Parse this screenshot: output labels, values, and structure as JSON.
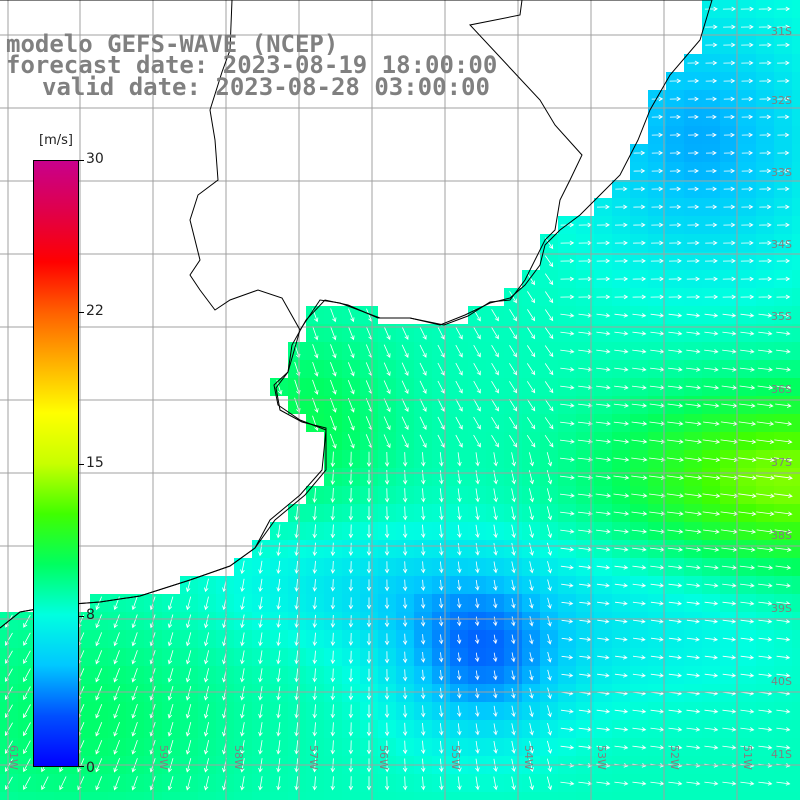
{
  "title": {
    "line1": "modelo GEFS-WAVE (NCEP)",
    "line2": "forecast date: 2023-08-19 18:00:00",
    "line3": "valid date: 2023-08-28 03:00:00"
  },
  "colorbar": {
    "units": "[m/s]",
    "ticks": [
      "30",
      "22",
      "15",
      "8",
      "0"
    ],
    "colors": [
      "#0000ff",
      "#0050ff",
      "#00c8ff",
      "#00ffe0",
      "#00ff60",
      "#40ff00",
      "#c8ff00",
      "#ffff00",
      "#ffb000",
      "#ff6000",
      "#ff0000",
      "#e0004a",
      "#c8008c"
    ]
  },
  "grid": {
    "longitude_labels": [
      "61W",
      "59W",
      "58W",
      "57W",
      "56W",
      "55W",
      "54W",
      "53W",
      "52W",
      "51W"
    ],
    "latitude_labels": [
      "31S",
      "32S",
      "33S",
      "34S",
      "35S",
      "36S",
      "37S",
      "38S",
      "39S",
      "40S",
      "41S"
    ]
  },
  "colors": {
    "land": "#ffffff",
    "coastline": "#000000",
    "gridline": "#a0a0a0",
    "arrow": "#ffffff",
    "label_gray": "#808080"
  }
}
